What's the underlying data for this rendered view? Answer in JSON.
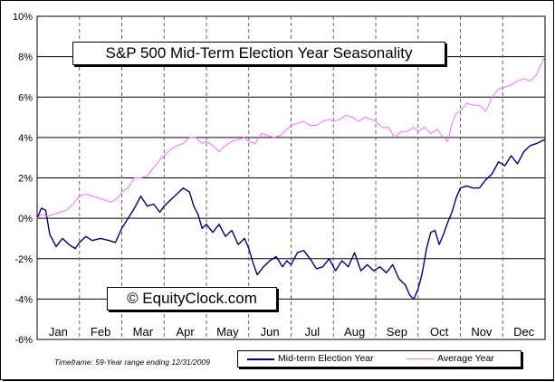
{
  "chart_data": {
    "type": "line",
    "title": "S&P 500 Mid-Term Election Year Seasonality",
    "copyright": "© EquityClock.com",
    "footnote": "Timeframe: 59-Year range ending 12/31/2009",
    "y_unit": "%",
    "ylim": [
      -6,
      10
    ],
    "y_ticks": [
      "10%",
      "8%",
      "6%",
      "4%",
      "2%",
      "0%",
      "-2%",
      "-4%",
      "-6%"
    ],
    "y_tick_values": [
      10,
      8,
      6,
      4,
      2,
      0,
      -2,
      -4,
      -6
    ],
    "months": [
      "Jan",
      "Feb",
      "Mar",
      "Apr",
      "May",
      "Jun",
      "Jul",
      "Aug",
      "Sep",
      "Oct",
      "Nov",
      "Dec"
    ],
    "x_range": [
      0,
      12
    ],
    "grid": true,
    "legend_position": "bottom",
    "series": [
      {
        "name": "Mid-term Election Year",
        "color": "#000080",
        "points": [
          [
            0.0,
            0.0
          ],
          [
            0.1,
            0.5
          ],
          [
            0.2,
            0.4
          ],
          [
            0.3,
            -0.8
          ],
          [
            0.45,
            -1.4
          ],
          [
            0.6,
            -1.0
          ],
          [
            0.75,
            -1.3
          ],
          [
            0.9,
            -1.5
          ],
          [
            1.0,
            -1.2
          ],
          [
            1.15,
            -0.9
          ],
          [
            1.3,
            -1.1
          ],
          [
            1.5,
            -1.0
          ],
          [
            1.7,
            -1.1
          ],
          [
            1.85,
            -1.2
          ],
          [
            2.0,
            -0.5
          ],
          [
            2.15,
            0.0
          ],
          [
            2.3,
            0.5
          ],
          [
            2.45,
            1.1
          ],
          [
            2.6,
            0.6
          ],
          [
            2.75,
            0.7
          ],
          [
            2.9,
            0.3
          ],
          [
            3.0,
            0.6
          ],
          [
            3.15,
            0.9
          ],
          [
            3.3,
            1.2
          ],
          [
            3.45,
            1.5
          ],
          [
            3.6,
            1.3
          ],
          [
            3.7,
            0.6
          ],
          [
            3.8,
            0.2
          ],
          [
            3.9,
            -0.5
          ],
          [
            4.0,
            -0.3
          ],
          [
            4.15,
            -0.7
          ],
          [
            4.3,
            -0.3
          ],
          [
            4.45,
            -0.9
          ],
          [
            4.6,
            -0.6
          ],
          [
            4.75,
            -1.3
          ],
          [
            4.9,
            -1.0
          ],
          [
            5.0,
            -1.5
          ],
          [
            5.1,
            -2.2
          ],
          [
            5.2,
            -2.8
          ],
          [
            5.35,
            -2.4
          ],
          [
            5.5,
            -2.1
          ],
          [
            5.65,
            -1.9
          ],
          [
            5.8,
            -2.4
          ],
          [
            5.9,
            -2.1
          ],
          [
            6.0,
            -2.3
          ],
          [
            6.15,
            -1.7
          ],
          [
            6.3,
            -1.6
          ],
          [
            6.45,
            -2.0
          ],
          [
            6.6,
            -2.5
          ],
          [
            6.75,
            -2.4
          ],
          [
            6.9,
            -2.0
          ],
          [
            7.05,
            -2.6
          ],
          [
            7.2,
            -2.1
          ],
          [
            7.35,
            -2.4
          ],
          [
            7.5,
            -1.7
          ],
          [
            7.65,
            -2.6
          ],
          [
            7.8,
            -2.3
          ],
          [
            7.95,
            -2.6
          ],
          [
            8.1,
            -2.4
          ],
          [
            8.25,
            -2.7
          ],
          [
            8.4,
            -2.3
          ],
          [
            8.55,
            -3.0
          ],
          [
            8.7,
            -3.3
          ],
          [
            8.8,
            -3.8
          ],
          [
            8.9,
            -4.0
          ],
          [
            9.0,
            -3.5
          ],
          [
            9.1,
            -2.7
          ],
          [
            9.2,
            -1.5
          ],
          [
            9.3,
            -0.7
          ],
          [
            9.4,
            -0.6
          ],
          [
            9.5,
            -1.3
          ],
          [
            9.6,
            -0.8
          ],
          [
            9.7,
            -0.2
          ],
          [
            9.8,
            0.3
          ],
          [
            9.9,
            1.0
          ],
          [
            10.0,
            1.5
          ],
          [
            10.15,
            1.6
          ],
          [
            10.3,
            1.5
          ],
          [
            10.45,
            1.5
          ],
          [
            10.6,
            1.9
          ],
          [
            10.75,
            2.2
          ],
          [
            10.9,
            2.8
          ],
          [
            11.05,
            2.6
          ],
          [
            11.2,
            3.1
          ],
          [
            11.35,
            2.7
          ],
          [
            11.5,
            3.3
          ],
          [
            11.65,
            3.6
          ],
          [
            11.8,
            3.7
          ],
          [
            11.9,
            3.8
          ],
          [
            12.0,
            3.9
          ]
        ]
      },
      {
        "name": "Average Year",
        "color": "#ff66ff",
        "points": [
          [
            0.0,
            0.0
          ],
          [
            0.1,
            0.2
          ],
          [
            0.25,
            0.1
          ],
          [
            0.4,
            0.2
          ],
          [
            0.55,
            0.3
          ],
          [
            0.7,
            0.4
          ],
          [
            0.85,
            0.7
          ],
          [
            1.0,
            1.1
          ],
          [
            1.15,
            1.2
          ],
          [
            1.3,
            1.1
          ],
          [
            1.45,
            1.0
          ],
          [
            1.6,
            0.9
          ],
          [
            1.75,
            0.8
          ],
          [
            1.9,
            1.0
          ],
          [
            2.0,
            1.3
          ],
          [
            2.15,
            1.5
          ],
          [
            2.3,
            2.0
          ],
          [
            2.45,
            2.0
          ],
          [
            2.6,
            2.1
          ],
          [
            2.75,
            2.5
          ],
          [
            2.9,
            2.9
          ],
          [
            3.0,
            3.1
          ],
          [
            3.15,
            3.4
          ],
          [
            3.3,
            3.6
          ],
          [
            3.45,
            3.7
          ],
          [
            3.6,
            4.0
          ],
          [
            3.75,
            4.0
          ],
          [
            3.9,
            3.7
          ],
          [
            4.0,
            3.8
          ],
          [
            4.15,
            3.6
          ],
          [
            4.3,
            3.3
          ],
          [
            4.45,
            3.6
          ],
          [
            4.6,
            3.8
          ],
          [
            4.75,
            3.9
          ],
          [
            4.9,
            4.0
          ],
          [
            5.0,
            3.8
          ],
          [
            5.15,
            3.7
          ],
          [
            5.3,
            4.2
          ],
          [
            5.45,
            4.1
          ],
          [
            5.6,
            4.0
          ],
          [
            5.75,
            4.1
          ],
          [
            5.9,
            4.4
          ],
          [
            6.0,
            4.6
          ],
          [
            6.15,
            4.7
          ],
          [
            6.3,
            4.8
          ],
          [
            6.45,
            4.6
          ],
          [
            6.6,
            4.6
          ],
          [
            6.75,
            4.8
          ],
          [
            6.9,
            4.9
          ],
          [
            7.0,
            4.8
          ],
          [
            7.15,
            4.9
          ],
          [
            7.3,
            5.1
          ],
          [
            7.45,
            5.0
          ],
          [
            7.6,
            4.8
          ],
          [
            7.75,
            5.0
          ],
          [
            7.9,
            4.9
          ],
          [
            8.0,
            4.8
          ],
          [
            8.15,
            4.5
          ],
          [
            8.3,
            4.5
          ],
          [
            8.45,
            4.0
          ],
          [
            8.6,
            4.3
          ],
          [
            8.75,
            4.3
          ],
          [
            8.9,
            4.5
          ],
          [
            9.0,
            4.3
          ],
          [
            9.15,
            4.5
          ],
          [
            9.3,
            4.2
          ],
          [
            9.45,
            4.4
          ],
          [
            9.6,
            4.0
          ],
          [
            9.7,
            3.8
          ],
          [
            9.8,
            4.7
          ],
          [
            9.9,
            5.2
          ],
          [
            10.0,
            5.3
          ],
          [
            10.15,
            5.7
          ],
          [
            10.3,
            5.6
          ],
          [
            10.45,
            5.6
          ],
          [
            10.6,
            5.3
          ],
          [
            10.75,
            6.0
          ],
          [
            10.9,
            6.4
          ],
          [
            11.05,
            6.5
          ],
          [
            11.2,
            6.6
          ],
          [
            11.35,
            6.8
          ],
          [
            11.5,
            6.9
          ],
          [
            11.65,
            6.8
          ],
          [
            11.8,
            7.1
          ],
          [
            11.9,
            7.6
          ],
          [
            12.0,
            8.0
          ]
        ]
      }
    ]
  }
}
